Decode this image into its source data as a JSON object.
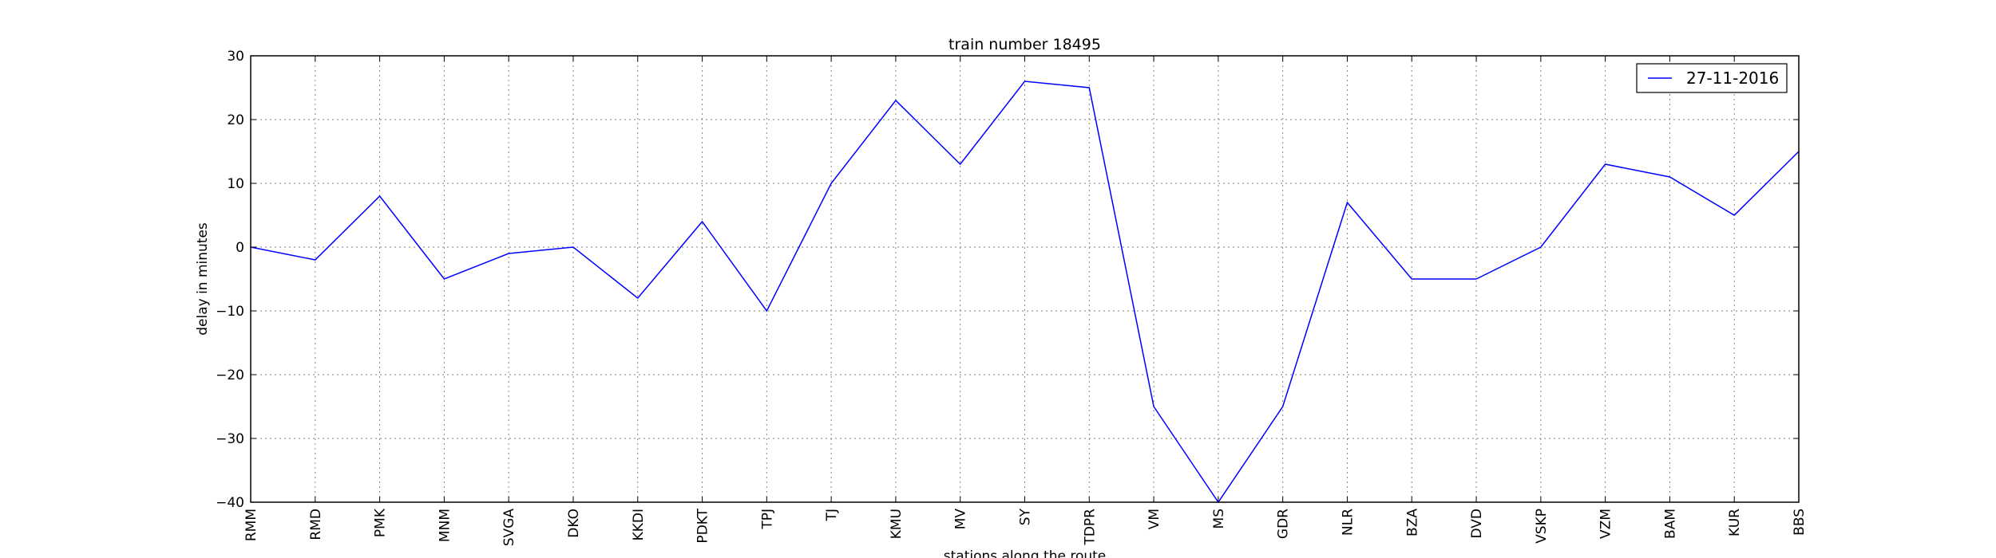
{
  "chart_data": {
    "type": "line",
    "title": "train number 18495",
    "xlabel": "stations along the route",
    "ylabel": "delay in minutes",
    "categories": [
      "RMM",
      "RMD",
      "PMK",
      "MNM",
      "SVGA",
      "DKO",
      "KKDI",
      "PDKT",
      "TPJ",
      "TJ",
      "KMU",
      "MV",
      "SY",
      "TDPR",
      "VM",
      "MS",
      "GDR",
      "NLR",
      "BZA",
      "DVD",
      "VSKP",
      "VZM",
      "BAM",
      "KUR",
      "BBS"
    ],
    "series": [
      {
        "name": "27-11-2016",
        "values": [
          0,
          -2,
          8,
          -5,
          -1,
          0,
          -8,
          4,
          -10,
          10,
          23,
          13,
          26,
          25,
          -25,
          -40,
          -25,
          7,
          -5,
          -5,
          0,
          13,
          11,
          5,
          15
        ]
      }
    ],
    "ylim": [
      -40,
      30
    ],
    "yticks": [
      -40,
      -30,
      -20,
      -10,
      0,
      10,
      20,
      30
    ],
    "ytick_labels": [
      "−40",
      "−30",
      "−20",
      "−10",
      "0",
      "10",
      "20",
      "30"
    ],
    "grid": true,
    "legend_position": "top-right",
    "colors": {
      "series": "#0000ff",
      "grid": "#808080",
      "frame": "#000000"
    }
  }
}
